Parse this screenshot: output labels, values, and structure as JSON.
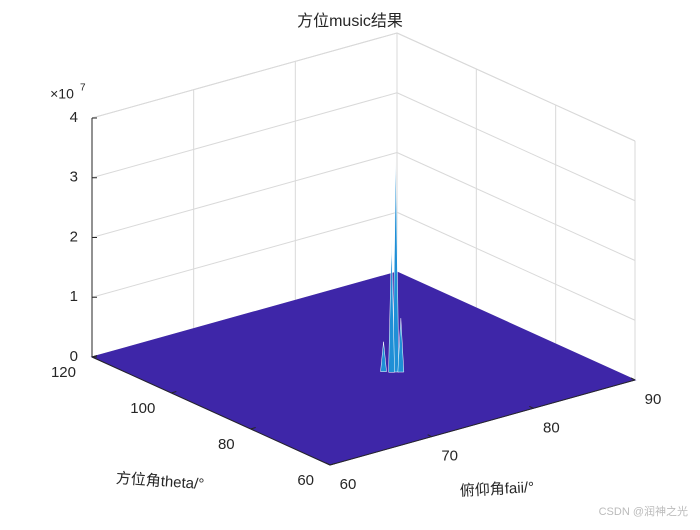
{
  "chart_data": {
    "type": "surface3d",
    "title": "方位music结果",
    "x_label": "方位角theta/°",
    "y_label": "俯仰角faii/°",
    "xlim": [
      60,
      120
    ],
    "xticks": [
      60,
      80,
      100,
      120
    ],
    "ylim": [
      60,
      90
    ],
    "yticks": [
      60,
      70,
      80,
      90
    ],
    "zlim": [
      0,
      4
    ],
    "zticks": [
      0,
      1,
      2,
      3,
      4
    ],
    "z_multiplier": "×10",
    "z_exponent": "7",
    "grid": true,
    "surface_color": "#3e26a8",
    "peaks": {
      "x": [
        85.7,
        86,
        85.2,
        87
      ],
      "y": [
        76.5,
        76.2,
        76.8,
        75.8
      ],
      "values": [
        3.6,
        2.2,
        0.9,
        0.5
      ]
    },
    "peak_color": "#1f8fd6"
  },
  "watermark": "CSDN @润神之光"
}
